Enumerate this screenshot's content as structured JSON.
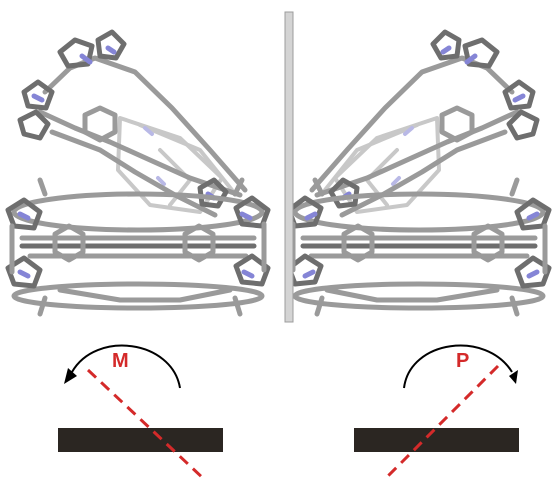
{
  "labels": {
    "left": "M",
    "right": "P"
  },
  "colors": {
    "label": "#d42a2a",
    "axis_line": "#d42a2a",
    "plate": "#2b2622",
    "arrow": "#000000",
    "mirror_fill": "#d4d4d4",
    "mirror_stroke": "#9c9c9c",
    "molecule_carbon": "#9a9a9a",
    "molecule_nitrogen": "#8585d6"
  },
  "icons": {
    "left_arrow": "counterclockwise-arrow-icon",
    "right_arrow": "clockwise-arrow-icon"
  }
}
